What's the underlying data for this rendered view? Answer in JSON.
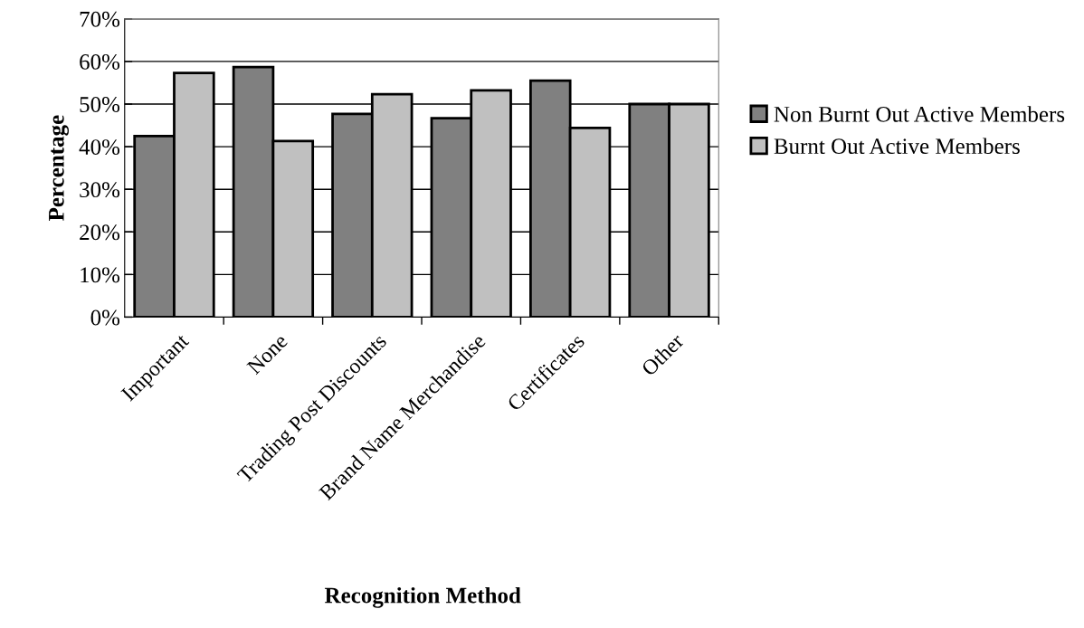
{
  "chart_data": {
    "type": "bar",
    "xlabel": "Recognition Method",
    "ylabel": "Percentage",
    "categories": [
      "Important",
      "None",
      "Trading Post Discounts",
      "Brand Name Merchandise",
      "Certificates",
      "Other"
    ],
    "series": [
      {
        "name": "Non Burnt Out Active Members",
        "color": "#808080",
        "values": [
          42.5,
          58.7,
          47.7,
          46.7,
          55.5,
          50.0
        ]
      },
      {
        "name": "Burnt Out Active Members",
        "color": "#c0c0c0",
        "values": [
          57.3,
          41.3,
          52.3,
          53.2,
          44.4,
          50.0
        ]
      }
    ],
    "ylim": [
      0,
      70
    ],
    "yticks": [
      {
        "value": 0,
        "label": "0%"
      },
      {
        "value": 10,
        "label": "10%"
      },
      {
        "value": 20,
        "label": "20%"
      },
      {
        "value": 30,
        "label": "30%"
      },
      {
        "value": 40,
        "label": "40%"
      },
      {
        "value": 50,
        "label": "50%"
      },
      {
        "value": 60,
        "label": "60%"
      },
      {
        "value": 70,
        "label": "70%"
      }
    ],
    "grid": "y",
    "legend": "right"
  }
}
